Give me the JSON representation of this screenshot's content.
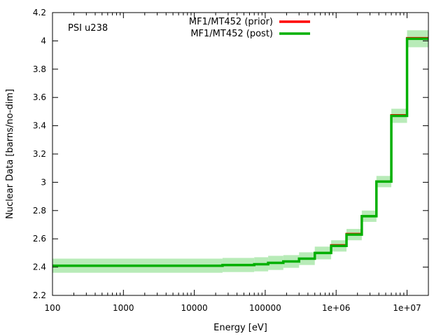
{
  "chart_data": {
    "type": "line",
    "step": true,
    "annotation": "PSI u238",
    "xlabel": "Energy [eV]",
    "ylabel": "Nuclear Data [barns/no-dim]",
    "xscale": "log",
    "xlim": [
      100,
      20000000
    ],
    "ylim": [
      2.2,
      4.2
    ],
    "xticks": [
      {
        "value": 100,
        "label": "100"
      },
      {
        "value": 1000,
        "label": "1000"
      },
      {
        "value": 10000,
        "label": "10000"
      },
      {
        "value": 100000,
        "label": "100000"
      },
      {
        "value": 1000000,
        "label": "1e+06"
      },
      {
        "value": 10000000,
        "label": "1e+07"
      }
    ],
    "yticks": [
      {
        "value": 2.2,
        "label": "2.2"
      },
      {
        "value": 2.4,
        "label": "2.4"
      },
      {
        "value": 2.6,
        "label": "2.6"
      },
      {
        "value": 2.8,
        "label": "2.8"
      },
      {
        "value": 3.0,
        "label": "3"
      },
      {
        "value": 3.2,
        "label": "3.2"
      },
      {
        "value": 3.4,
        "label": "3.4"
      },
      {
        "value": 3.6,
        "label": "3.6"
      },
      {
        "value": 3.8,
        "label": "3.8"
      },
      {
        "value": 4.0,
        "label": "4"
      },
      {
        "value": 4.2,
        "label": "4.2"
      }
    ],
    "legend": {
      "position": "top-center",
      "entries": [
        {
          "label": "MF1/MT452 (prior)",
          "color": "#ff0000"
        },
        {
          "label": "MF1/MT452 (post)",
          "color": "#00b000"
        }
      ]
    },
    "band_color": "#b8ebb8",
    "series": [
      {
        "name": "MF1/MT452 (prior)",
        "color": "#ff0000",
        "steps": [
          {
            "x0": 100,
            "x1": 25000,
            "y": 2.41
          },
          {
            "x0": 25000,
            "x1": 70000,
            "y": 2.415
          },
          {
            "x0": 70000,
            "x1": 110000,
            "y": 2.42
          },
          {
            "x0": 110000,
            "x1": 180000,
            "y": 2.43
          },
          {
            "x0": 180000,
            "x1": 300000,
            "y": 2.44
          },
          {
            "x0": 300000,
            "x1": 500000,
            "y": 2.46
          },
          {
            "x0": 500000,
            "x1": 850000,
            "y": 2.5
          },
          {
            "x0": 850000,
            "x1": 1400000,
            "y": 2.555
          },
          {
            "x0": 1400000,
            "x1": 2300000,
            "y": 2.635
          },
          {
            "x0": 2300000,
            "x1": 3700000,
            "y": 2.76
          },
          {
            "x0": 3700000,
            "x1": 6000000,
            "y": 3.005
          },
          {
            "x0": 6000000,
            "x1": 10000000,
            "y": 3.475
          },
          {
            "x0": 10000000,
            "x1": 20000000,
            "y": 4.02
          }
        ]
      },
      {
        "name": "MF1/MT452 (post)",
        "color": "#00b000",
        "steps": [
          {
            "x0": 100,
            "x1": 25000,
            "y": 2.41,
            "err": 0.05
          },
          {
            "x0": 25000,
            "x1": 70000,
            "y": 2.415,
            "err": 0.05
          },
          {
            "x0": 70000,
            "x1": 110000,
            "y": 2.42,
            "err": 0.05
          },
          {
            "x0": 110000,
            "x1": 180000,
            "y": 2.43,
            "err": 0.05
          },
          {
            "x0": 180000,
            "x1": 300000,
            "y": 2.44,
            "err": 0.045
          },
          {
            "x0": 300000,
            "x1": 500000,
            "y": 2.46,
            "err": 0.045
          },
          {
            "x0": 500000,
            "x1": 850000,
            "y": 2.5,
            "err": 0.045
          },
          {
            "x0": 850000,
            "x1": 1400000,
            "y": 2.55,
            "err": 0.04
          },
          {
            "x0": 1400000,
            "x1": 2300000,
            "y": 2.63,
            "err": 0.04
          },
          {
            "x0": 2300000,
            "x1": 3700000,
            "y": 2.76,
            "err": 0.04
          },
          {
            "x0": 3700000,
            "x1": 6000000,
            "y": 3.005,
            "err": 0.04
          },
          {
            "x0": 6000000,
            "x1": 10000000,
            "y": 3.47,
            "err": 0.05
          },
          {
            "x0": 10000000,
            "x1": 20000000,
            "y": 4.015,
            "err": 0.06
          }
        ]
      }
    ]
  }
}
